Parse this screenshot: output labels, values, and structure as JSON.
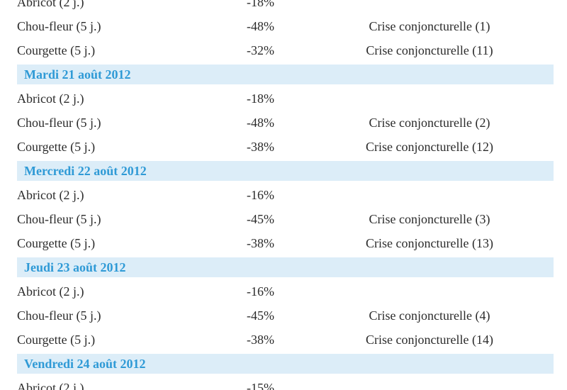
{
  "days": [
    {
      "label": "",
      "rows": [
        {
          "product": "Abricot (2 j.)",
          "change": "-18%",
          "status": ""
        },
        {
          "product": "Chou-fleur (5 j.)",
          "change": "-48%",
          "status": "Crise conjoncturelle (1)"
        },
        {
          "product": "Courgette (5 j.)",
          "change": "-32%",
          "status": "Crise conjoncturelle (11)"
        }
      ]
    },
    {
      "label": "Mardi 21 août 2012",
      "rows": [
        {
          "product": "Abricot (2 j.)",
          "change": "-18%",
          "status": ""
        },
        {
          "product": "Chou-fleur (5 j.)",
          "change": "-48%",
          "status": "Crise conjoncturelle (2)"
        },
        {
          "product": "Courgette (5 j.)",
          "change": "-38%",
          "status": "Crise conjoncturelle (12)"
        }
      ]
    },
    {
      "label": "Mercredi 22 août 2012",
      "rows": [
        {
          "product": "Abricot (2 j.)",
          "change": "-16%",
          "status": ""
        },
        {
          "product": "Chou-fleur (5 j.)",
          "change": "-45%",
          "status": "Crise conjoncturelle (3)"
        },
        {
          "product": "Courgette (5 j.)",
          "change": "-38%",
          "status": "Crise conjoncturelle (13)"
        }
      ]
    },
    {
      "label": "Jeudi 23 août 2012",
      "rows": [
        {
          "product": "Abricot (2 j.)",
          "change": "-16%",
          "status": ""
        },
        {
          "product": "Chou-fleur (5 j.)",
          "change": "-45%",
          "status": "Crise conjoncturelle (4)"
        },
        {
          "product": "Courgette (5 j.)",
          "change": "-38%",
          "status": "Crise conjoncturelle (14)"
        }
      ]
    },
    {
      "label": "Vendredi 24 août 2012",
      "rows": [
        {
          "product": "Abricot (2 j.)",
          "change": "-15%",
          "status": ""
        }
      ]
    }
  ],
  "colors": {
    "day_header_text": "#2f9ad6",
    "day_header_band": "#dcedf8",
    "body_text": "#2b2b2b"
  }
}
